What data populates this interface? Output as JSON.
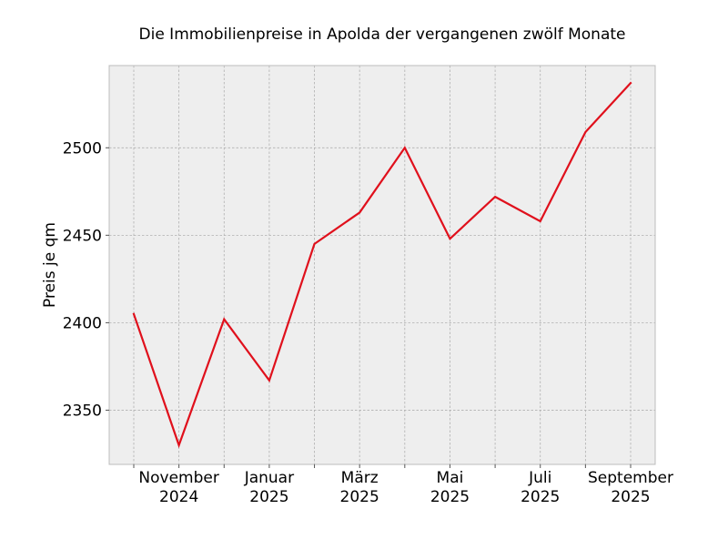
{
  "chart_data": {
    "type": "line",
    "title": "Die Immobilienpreise in Apolda der vergangenen zwölf Monate",
    "xlabel": "",
    "ylabel": "Preis je qm",
    "x": [
      "2024-10",
      "2024-11",
      "2024-12",
      "2025-01",
      "2025-02",
      "2025-03",
      "2025-04",
      "2025-05",
      "2025-06",
      "2025-07",
      "2025-08",
      "2025-09"
    ],
    "series": [
      {
        "values": [
          2405,
          2330,
          2402,
          2367,
          2445,
          2463,
          2500,
          2448,
          2472,
          2458,
          2509,
          2537
        ],
        "color": "#e0101c"
      }
    ],
    "ylim": [
      2319,
      2547
    ],
    "yticks": [
      2350,
      2400,
      2450,
      2500
    ],
    "xticks": [
      {
        "month": "2024-11",
        "line1": "November",
        "line2": "2024"
      },
      {
        "month": "2025-01",
        "line1": "Januar",
        "line2": "2025"
      },
      {
        "month": "2025-03",
        "line1": "März",
        "line2": "2025"
      },
      {
        "month": "2025-05",
        "line1": "Mai",
        "line2": "2025"
      },
      {
        "month": "2025-07",
        "line1": "Juli",
        "line2": "2025"
      },
      {
        "month": "2025-09",
        "line1": "September",
        "line2": "2025"
      }
    ],
    "grid": true,
    "background_color": "#eeeeee",
    "grid_color": "#b0b0b0"
  }
}
